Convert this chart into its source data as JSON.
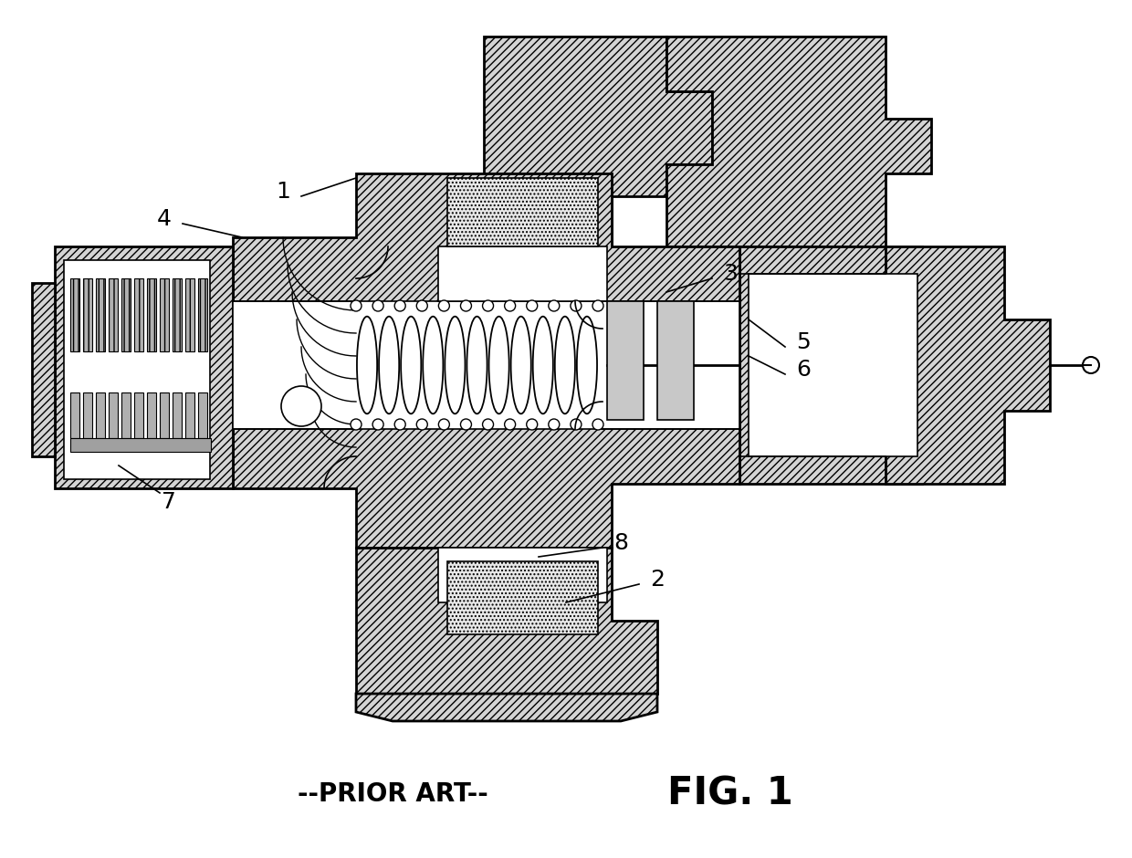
{
  "fig_label": "FIG. 1",
  "prior_art_label": "--PRIOR ART--",
  "background_color": "#ffffff",
  "hatch_fill": "#d4d4d4",
  "white_fill": "#ffffff",
  "light_gray": "#e8e8e8",
  "dot_fill": "#c8c8c8",
  "fig_label_fontsize": 30,
  "prior_art_fontsize": 20,
  "label_fontsize": 18
}
